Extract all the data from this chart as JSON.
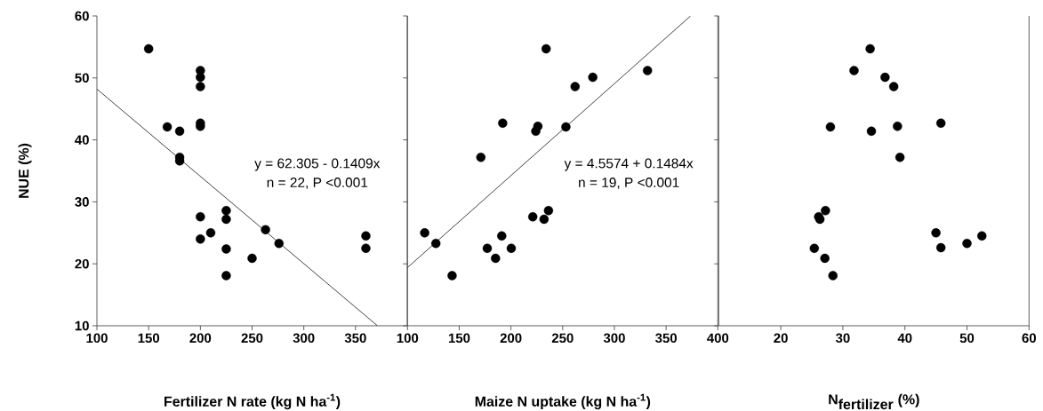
{
  "chart_data": [
    {
      "type": "scatter",
      "xlabel": "Fertilizer N rate (kg N ha$^{-1}$)",
      "ylabel": "NUE (%)",
      "xlim": [
        100,
        400
      ],
      "xticks": [
        100,
        150,
        200,
        250,
        300,
        350
      ],
      "ylim": [
        10,
        60
      ],
      "yticks": [
        10,
        20,
        30,
        40,
        50,
        60
      ],
      "annotations": [
        "y = 62.305 - 0.1409x",
        "n = 22, P <0.001"
      ],
      "series": [
        {
          "color": "#000000",
          "marker": "circle",
          "x": [
            150,
            200,
            200,
            200,
            168,
            180,
            200,
            200,
            180,
            180,
            200,
            200,
            210,
            225,
            225,
            225,
            225,
            250,
            263,
            276,
            360,
            360
          ],
          "values": [
            54.7,
            51.2,
            50.1,
            48.6,
            42.1,
            41.4,
            42.7,
            42.2,
            37.2,
            36.6,
            27.6,
            24.0,
            25.0,
            28.6,
            27.2,
            22.4,
            18.1,
            20.9,
            25.5,
            23.3,
            24.5,
            22.5
          ]
        },
        {
          "type": "line",
          "color": "#000000",
          "marker": "none",
          "x": [
            100,
            371.2
          ],
          "values": [
            48.2,
            10.0
          ]
        }
      ]
    },
    {
      "type": "scatter",
      "xlabel": "Maize N uptake (kg N ha$^{-1}$)",
      "tick_labels": "x",
      "xlim": [
        100,
        400
      ],
      "xticks": [
        100,
        150,
        200,
        250,
        300,
        350,
        400
      ],
      "ylim": [
        10,
        60
      ],
      "yticks": [
        10,
        20,
        30,
        40,
        50,
        60
      ],
      "annotations": [
        "y = 4.5574 + 0.1484x",
        "n = 19, P <0.001"
      ],
      "series": [
        {
          "color": "#000000",
          "marker": "circle",
          "x": [
            116.6,
            127.4,
            143.1,
            170.9,
            177.1,
            185.1,
            191.1,
            192,
            200.3,
            221.1,
            224,
            226,
            232,
            234,
            236.3,
            253.1,
            262,
            279.1,
            332
          ],
          "values": [
            25.0,
            23.3,
            18.1,
            37.2,
            22.5,
            20.9,
            24.5,
            42.7,
            22.5,
            27.6,
            41.4,
            42.2,
            27.2,
            54.7,
            28.6,
            42.1,
            48.6,
            50.1,
            51.2
          ]
        },
        {
          "type": "line",
          "color": "#000000",
          "marker": "none",
          "x": [
            100,
            373.6
          ],
          "values": [
            19.4,
            60.0
          ]
        }
      ]
    },
    {
      "type": "scatter",
      "xlabel": "\\textbf{N}_{\\textbf{fertilizer}}\\textbf{ (\\%)}",
      "tick_labels": "x",
      "xlim": [
        10,
        60
      ],
      "xticks": [
        20,
        30,
        40,
        50,
        60
      ],
      "ylim": [
        10,
        60
      ],
      "yticks": [
        10,
        20,
        30,
        40,
        50,
        60
      ],
      "series": [
        {
          "color": "#000000",
          "marker": "circle",
          "x": [
            34.4,
            31.8,
            36.8,
            38.2,
            28.0,
            34.6,
            38.8,
            45.8,
            39.2,
            27.2,
            26.1,
            26.3,
            25.4,
            27.1,
            28.4,
            45.0,
            45.8,
            50.0,
            52.4
          ],
          "values": [
            54.7,
            51.2,
            50.1,
            48.6,
            42.1,
            41.4,
            42.2,
            42.7,
            37.2,
            28.6,
            27.6,
            27.2,
            22.5,
            20.9,
            18.1,
            25.0,
            22.6,
            23.3,
            24.5
          ]
        }
      ]
    }
  ]
}
